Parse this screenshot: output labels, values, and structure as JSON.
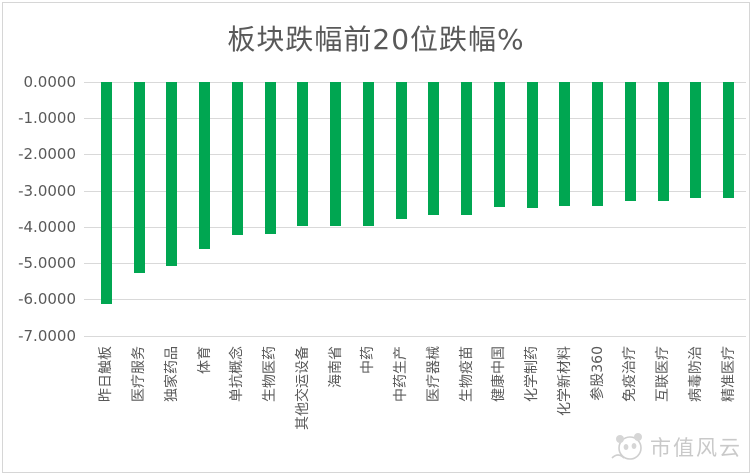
{
  "title": "板块跌幅前20位跌幅%",
  "watermark": {
    "text": "市值风云",
    "logo_icon": "panda-logo-icon"
  },
  "colors": {
    "bar": "#00A651",
    "gridline": "#D9D9D9",
    "axis_text": "#595959",
    "title_text": "#595959",
    "watermark_text": "#C9C9C9"
  },
  "chart_data": {
    "type": "bar",
    "title": "板块跌幅前20位跌幅%",
    "orientation": "vertical-negative",
    "categories": [
      "昨日触板",
      "医疗服务",
      "独家药品",
      "体育",
      "单抗概念",
      "生物医药",
      "其他交运设备",
      "海南省",
      "中药",
      "中药生产",
      "医疗器械",
      "生物疫苗",
      "健康中国",
      "化学制药",
      "化学新材料",
      "参股360",
      "免疫治疗",
      "互联医疗",
      "病毒防治",
      "精准医疗"
    ],
    "values": [
      -6.13,
      -5.26,
      -5.07,
      -4.61,
      -4.23,
      -4.19,
      -3.98,
      -3.98,
      -3.96,
      -3.78,
      -3.66,
      -3.66,
      -3.46,
      -3.48,
      -3.41,
      -3.42,
      -3.28,
      -3.28,
      -3.19,
      -3.2
    ],
    "ytick_labels": [
      "0.0000",
      "-1.0000",
      "-2.0000",
      "-3.0000",
      "-4.0000",
      "-5.0000",
      "-6.0000",
      "-7.0000"
    ],
    "ylim": [
      0,
      -7
    ],
    "xlabel": "",
    "ylabel": "",
    "grid": true,
    "legend": "none",
    "bar_color": "#00A651"
  }
}
